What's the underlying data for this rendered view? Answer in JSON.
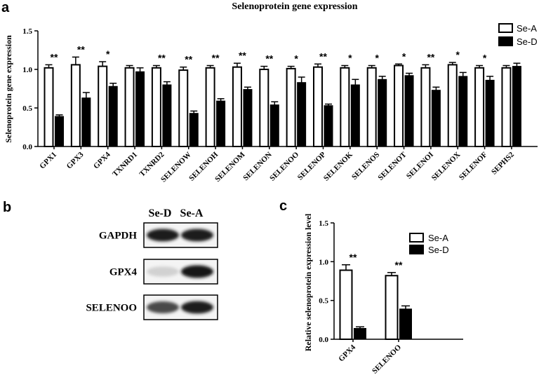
{
  "panels": {
    "a": "a",
    "b": "b",
    "c": "c"
  },
  "colors": {
    "sea": "#ffffff",
    "sed": "#000000",
    "stroke": "#000000"
  },
  "chart_data": [
    {
      "id": "a",
      "type": "bar",
      "title": "Selenoprotein gene expression",
      "xlabel": "",
      "ylabel": "Selenoprotein gene expression",
      "ylim": [
        0,
        1.5
      ],
      "yticks": [
        "0.0",
        "0.5",
        "1.0",
        "1.5"
      ],
      "legend_position": "top-right",
      "categories": [
        "GPX1",
        "GPX3",
        "GPX4",
        "TXNRD1",
        "TXNRD2",
        "SELENOW",
        "SELENOH",
        "SELENOM",
        "SELENON",
        "SELENOO",
        "SELENOP",
        "SELENOK",
        "SELENOS",
        "SELENOT",
        "SELENOI",
        "SELENOX",
        "SELENOF",
        "SEPHS2"
      ],
      "series": [
        {
          "name": "Se-A",
          "values": [
            1.02,
            1.06,
            1.04,
            1.02,
            1.02,
            0.99,
            1.02,
            1.03,
            1.0,
            1.01,
            1.03,
            1.02,
            1.02,
            1.05,
            1.02,
            1.06,
            1.02,
            1.02
          ],
          "errors": [
            0.04,
            0.1,
            0.06,
            0.03,
            0.03,
            0.04,
            0.03,
            0.05,
            0.04,
            0.03,
            0.04,
            0.03,
            0.03,
            0.02,
            0.04,
            0.03,
            0.03,
            0.03
          ]
        },
        {
          "name": "Se-D",
          "values": [
            0.39,
            0.63,
            0.78,
            0.97,
            0.8,
            0.43,
            0.59,
            0.74,
            0.54,
            0.83,
            0.53,
            0.8,
            0.87,
            0.92,
            0.73,
            0.91,
            0.86,
            1.04
          ],
          "errors": [
            0.02,
            0.07,
            0.04,
            0.05,
            0.04,
            0.03,
            0.03,
            0.03,
            0.04,
            0.07,
            0.02,
            0.07,
            0.04,
            0.03,
            0.04,
            0.05,
            0.05,
            0.04
          ]
        }
      ],
      "significance": [
        "**",
        "**",
        "*",
        "",
        "**",
        "**",
        "**",
        "**",
        "**",
        "*",
        "**",
        "*",
        "*",
        "*",
        "**",
        "*",
        "*",
        ""
      ]
    },
    {
      "id": "c",
      "type": "bar",
      "title": "",
      "xlabel": "",
      "ylabel": "Relative selenoprotein expression level",
      "ylim": [
        0,
        1.5
      ],
      "yticks": [
        "0.0",
        "0.5",
        "1.0",
        "1.5"
      ],
      "legend_position": "top-right",
      "categories": [
        "GPX4",
        "SELENOO"
      ],
      "series": [
        {
          "name": "Se-A",
          "values": [
            0.89,
            0.82
          ],
          "errors": [
            0.07,
            0.04
          ]
        },
        {
          "name": "Se-D",
          "values": [
            0.14,
            0.39
          ],
          "errors": [
            0.02,
            0.04
          ]
        }
      ],
      "significance": [
        "**",
        "**"
      ]
    }
  ],
  "western_blot": {
    "lanes": [
      "Se-D",
      "Se-A"
    ],
    "rows": [
      {
        "label": "GAPDH",
        "intensity": [
          0.95,
          0.95
        ]
      },
      {
        "label": "GPX4",
        "intensity": [
          0.12,
          1.0
        ]
      },
      {
        "label": "SELENOO",
        "intensity": [
          0.75,
          0.95
        ]
      }
    ]
  }
}
